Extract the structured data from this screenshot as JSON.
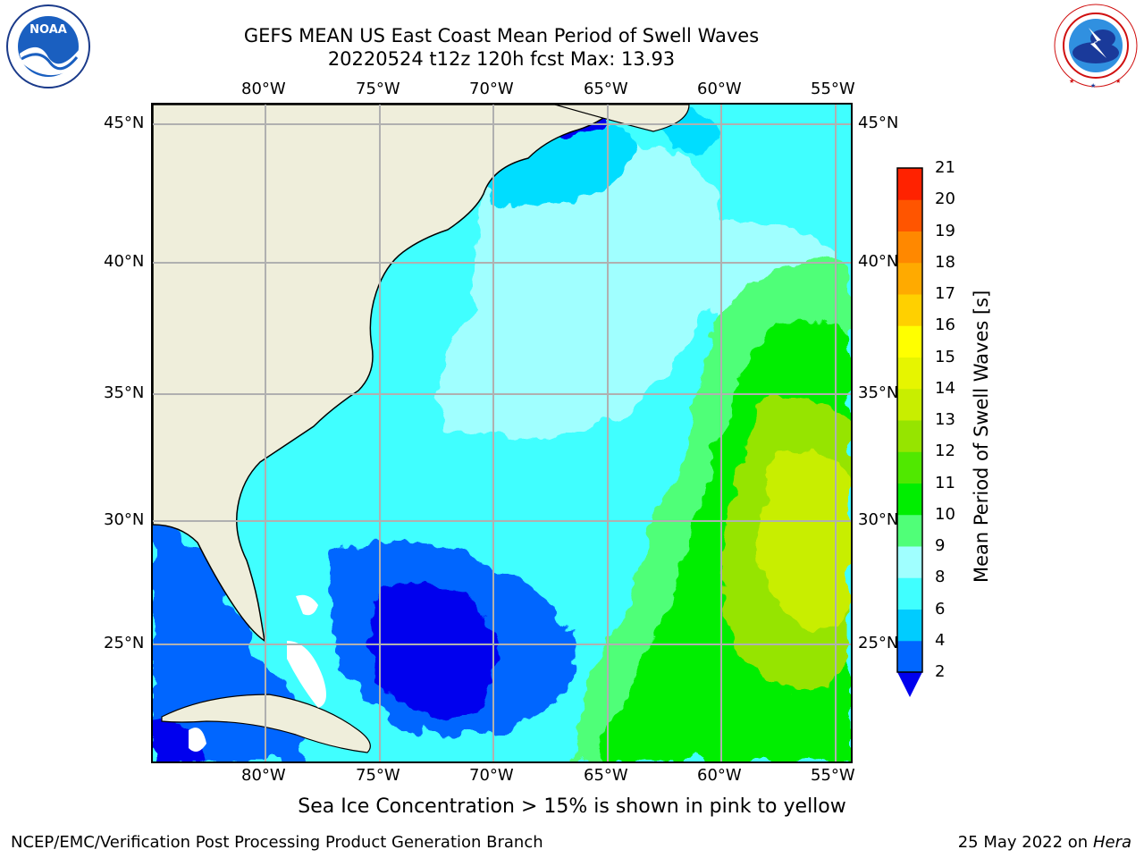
{
  "title": {
    "line1": "GEFS MEAN US East Coast Mean Period of Swell Waves",
    "line2": "20220524 t12z 120h fcst   Max: 13.93"
  },
  "logos": {
    "left": "noaa-logo",
    "right": "national-weather-service-logo",
    "left_text": "NOAA",
    "left_ring_text": "NATIONAL OCEANIC AND ATMOSPHERIC ADMINISTRATION · U.S. DEPARTMENT OF COMMERCE",
    "right_ring_text": "NATIONAL WEATHER SERVICE"
  },
  "map": {
    "lon_labels": [
      "80°W",
      "75°W",
      "70°W",
      "65°W",
      "60°W",
      "55°W"
    ],
    "lat_labels": [
      "45°N",
      "40°N",
      "35°N",
      "30°N",
      "25°N"
    ],
    "lon_range": [
      -85,
      -54
    ],
    "lat_range": [
      20.5,
      46
    ],
    "land_color": "#efeedb",
    "grid_color": "#b0b0b0"
  },
  "colorbar": {
    "title": "Mean Period of Swell Waves [s]",
    "ticks": [
      "2",
      "4",
      "6",
      "8",
      "9",
      "10",
      "11",
      "12",
      "13",
      "14",
      "15",
      "16",
      "17",
      "18",
      "19",
      "20",
      "21"
    ],
    "colors": [
      "#0066ff",
      "#00ccff",
      "#40ffff",
      "#a0ffff",
      "#50ff78",
      "#00ee00",
      "#50e800",
      "#96e400",
      "#c8ee00",
      "#e6f500",
      "#ffff00",
      "#ffd000",
      "#ffaa00",
      "#ff8800",
      "#ff5500",
      "#ff2200",
      "#ff0000"
    ],
    "under_color": "#0000ee"
  },
  "footer": {
    "note": "Sea Ice Concentration > 15% is shown in pink to yellow",
    "left": "NCEP/EMC/Verification Post Processing Product Generation Branch",
    "right_date": "25 May 2022 on",
    "right_host": "Hera"
  }
}
